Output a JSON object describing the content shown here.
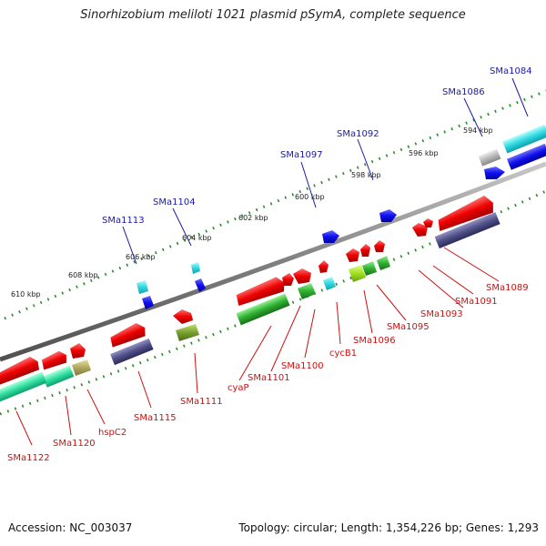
{
  "title": "Sinorhizobium meliloti 1021 plasmid pSymA, complete sequence",
  "accession": "Accession: NC_003037",
  "summary": "Topology: circular; Length: 1,354,226 bp; Genes: 1,293",
  "colors": {
    "backbone": "#8a8a8a",
    "ticks": "#2e8b2e",
    "label_forward": "#1a1aa6",
    "label_reverse": "#cc1111"
  },
  "ticks": [
    "594 kbp",
    "596 kbp",
    "598 kbp",
    "600 kbp",
    "602 kbp",
    "604 kbp",
    "606 kbp",
    "608 kbp",
    "610 kbp"
  ],
  "forward_labels": [
    "SMa1084",
    "SMa1086",
    "SMa1092",
    "SMa1097",
    "SMa1104",
    "SMa1113"
  ],
  "reverse_labels": [
    "SMa1089",
    "SMa1091",
    "SMa1093",
    "SMa1095",
    "SMa1096",
    "cycB1",
    "SMa1100",
    "SMa1101",
    "cyaP",
    "SMa1111",
    "SMa1115",
    "hspC2",
    "SMa1120",
    "SMa1122"
  ]
}
